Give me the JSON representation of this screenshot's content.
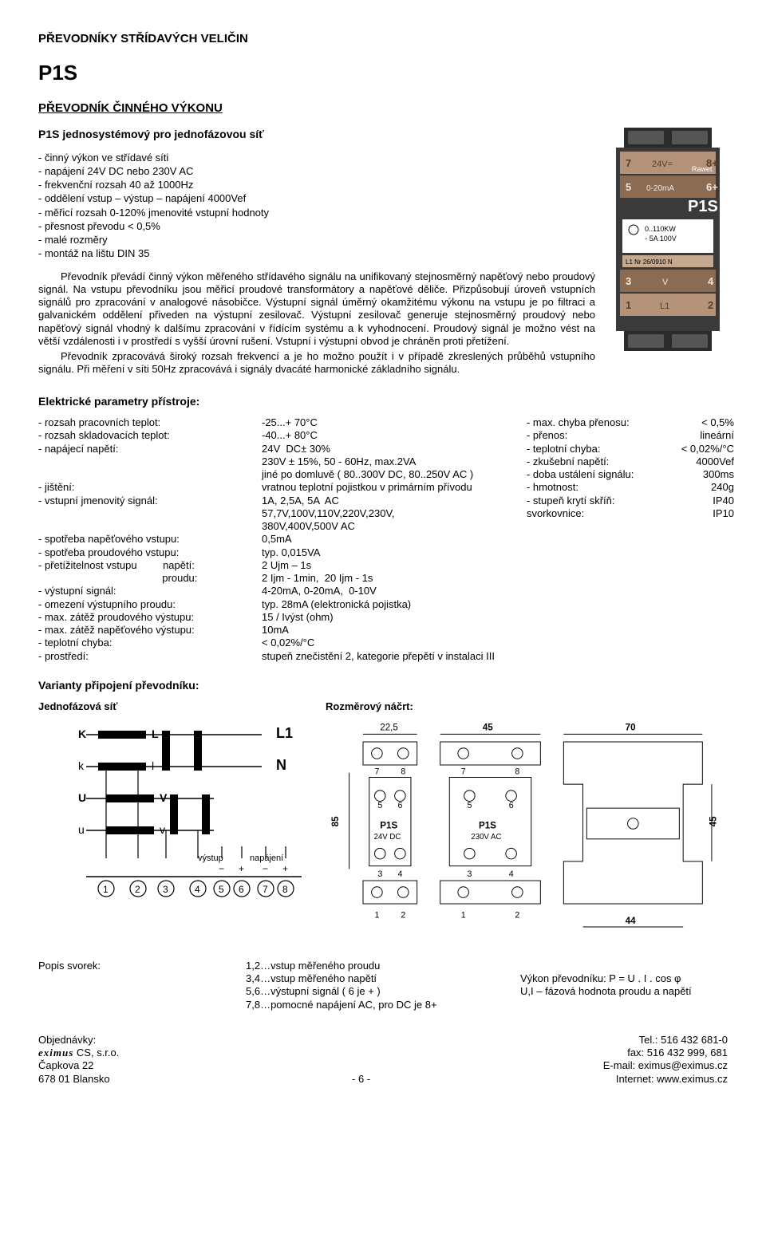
{
  "header": {
    "category": "PŘEVODNÍKY STŘÍDAVÝCH VELIČIN",
    "model": "P1S",
    "title": "PŘEVODNÍK ČINNÉHO VÝKONU",
    "subtitle": "P1S jednosystémový pro jednofázovou síť"
  },
  "bullets": [
    "- činný výkon ve střídavé síti",
    "- napájení 24V DC nebo 230V AC",
    "- frekvenční rozsah 40 až 1000Hz",
    "- oddělení  vstup – výstup – napájení 4000Vef",
    "- měřicí rozsah 0-120% jmenovité vstupní hodnoty",
    "- přesnost převodu < 0,5%",
    "- malé rozměry",
    "- montáž na lištu DIN 35"
  ],
  "para1": "Převodník převádí činný výkon měřeného střídavého signálu na unifikovaný stejnosměrný napěťový nebo proudový signál. Na vstupu převodníku jsou měřicí proudové transformátory a napěťové děliče. Přizpůsobují úroveň vstupních signálů pro zpracování v analogové násobičce. Výstupní signál úměrný okamžitému výkonu na vstupu je po filtraci a galvanickém oddělení přiveden na výstupní zesilovač. Výstupní zesilovač generuje stejnosměrný proudový nebo napěťový signál vhodný k dalšímu zpracování v řídícím systému a k vyhodnocení. Proudový signál je možno vést na větší vzdálenosti i v prostředí s vyšší úrovní rušení. Vstupní i výstupní obvod je chráněn proti přetížení.",
  "para2": "Převodník zpracovává široký rozsah frekvencí a je ho možno použít i v případě zkreslených průběhů vstupního signálu. Při měření v síti 50Hz zpracovává i signály dvacáté harmonické základního signálu.",
  "section_params": "Elektrické parametry přístroje:",
  "params_left": [
    "- rozsah pracovních teplot:",
    "- rozsah skladovacích teplot:",
    "- napájecí napětí:",
    "",
    "",
    "- jištění:",
    "- vstupní jmenovitý signál:",
    "",
    "",
    "- spotřeba napěťového vstupu:",
    "- spotřeba proudového vstupu:",
    "- přetížitelnost vstupu         napětí:",
    "                                           proudu:",
    "- výstupní signál:",
    "- omezení výstupního proudu:",
    "- max. zátěž proudového výstupu:",
    "- max. zátěž napěťového výstupu:",
    "- teplotní chyba:",
    "- prostředí:"
  ],
  "params_mid": [
    "-25...+ 70°C",
    "-40...+ 80°C",
    "24V  DC± 30%",
    "230V ± 15%, 50 - 60Hz, max.2VA",
    "jiné po domluvě ( 80..300V DC, 80..250V AC )",
    "vratnou teplotní pojistkou v primárním přívodu",
    "1A, 2,5A, 5A  AC",
    "57,7V,100V,110V,220V,230V,",
    "380V,400V,500V AC",
    "0,5mA",
    "typ. 0,015VA",
    "2 Ujm – 1s",
    "2 Ijm - 1min,  20 Ijm - 1s",
    "4-20mA, 0-20mA,  0-10V",
    "typ. 28mA (elektronická pojistka)",
    "15 / Ivýst (ohm)",
    "10mA",
    "< 0,02%/°C",
    "stupeň znečistění 2, kategorie přepětí v instalaci III"
  ],
  "params_right": [
    {
      "lab": "- max. chyba přenosu:",
      "val": "< 0,5%"
    },
    {
      "lab": "- přenos:",
      "val": "lineární"
    },
    {
      "lab": "- teplotní chyba:",
      "val": "< 0,02%/°C"
    },
    {
      "lab": "- zkušební napětí:",
      "val": "4000Vef"
    },
    {
      "lab": "- doba ustálení signálu:",
      "val": "300ms"
    },
    {
      "lab": "- hmotnost:",
      "val": "240g"
    },
    {
      "lab": "- stupeň krytí           skříň:",
      "val": "IP40"
    },
    {
      "lab": "                        svorkovnice:",
      "val": "IP10"
    }
  ],
  "variants_title": "Varianty připojení převodníku:",
  "variant_label": "Jednofázová síť",
  "dim_title": "Rozměrový náčrt:",
  "wiring": {
    "K": "K",
    "L": "L",
    "k": "k",
    "l": "l",
    "U": "U",
    "V": "V",
    "u": "u",
    "v": "v",
    "L1": "L1",
    "N": "N",
    "out": "výstup",
    "pwr": "napájení",
    "minus": "−",
    "plus": "+",
    "n1": "1",
    "n2": "2",
    "n3": "3",
    "n4": "4",
    "n5": "5",
    "n6": "6",
    "n7": "7",
    "n8": "8"
  },
  "dim": {
    "w1": "22,5",
    "w2": "45",
    "w3": "70",
    "h1": "85",
    "h2": "45",
    "bot": "44",
    "m1": "P1S",
    "sub1": "24V DC",
    "m2": "P1S",
    "sub2": "230V AC",
    "t7": "7",
    "t8": "8",
    "t5": "5",
    "t6": "6",
    "t3": "3",
    "t4": "4",
    "t1": "1",
    "t2": "2"
  },
  "popis_label": "Popis svorek:",
  "popis": [
    "1,2…vstup měřeného proudu",
    "3,4…vstup měřeného napětí",
    "5,6…výstupní signál ( 6 je + )",
    "7,8…pomocné napájení AC, pro DC je 8+"
  ],
  "formula1": "Výkon převodníku: P =  U  .  I  .  cos φ",
  "formula2": "U,I – fázová hodnota proudu a napětí",
  "foot": {
    "orders": "Objednávky:",
    "company_logo": "eximus",
    "company_suffix": " CS, s.r.o.",
    "addr1": "Čapkova 22",
    "addr2": "678 01  Blansko",
    "page": "- 6 -",
    "tel": "Tel.: 516 432 681-0",
    "fax": "fax: 516 432 999, 681",
    "email": "E-mail: eximus@eximus.cz",
    "web": "Internet: www.eximus.cz"
  },
  "colors": {
    "device_body": "#3a3a3a",
    "device_label_bg": "#b5927a",
    "device_label_bg2": "#8b6b52",
    "device_text": "#ffffff",
    "ink": "#000000"
  }
}
